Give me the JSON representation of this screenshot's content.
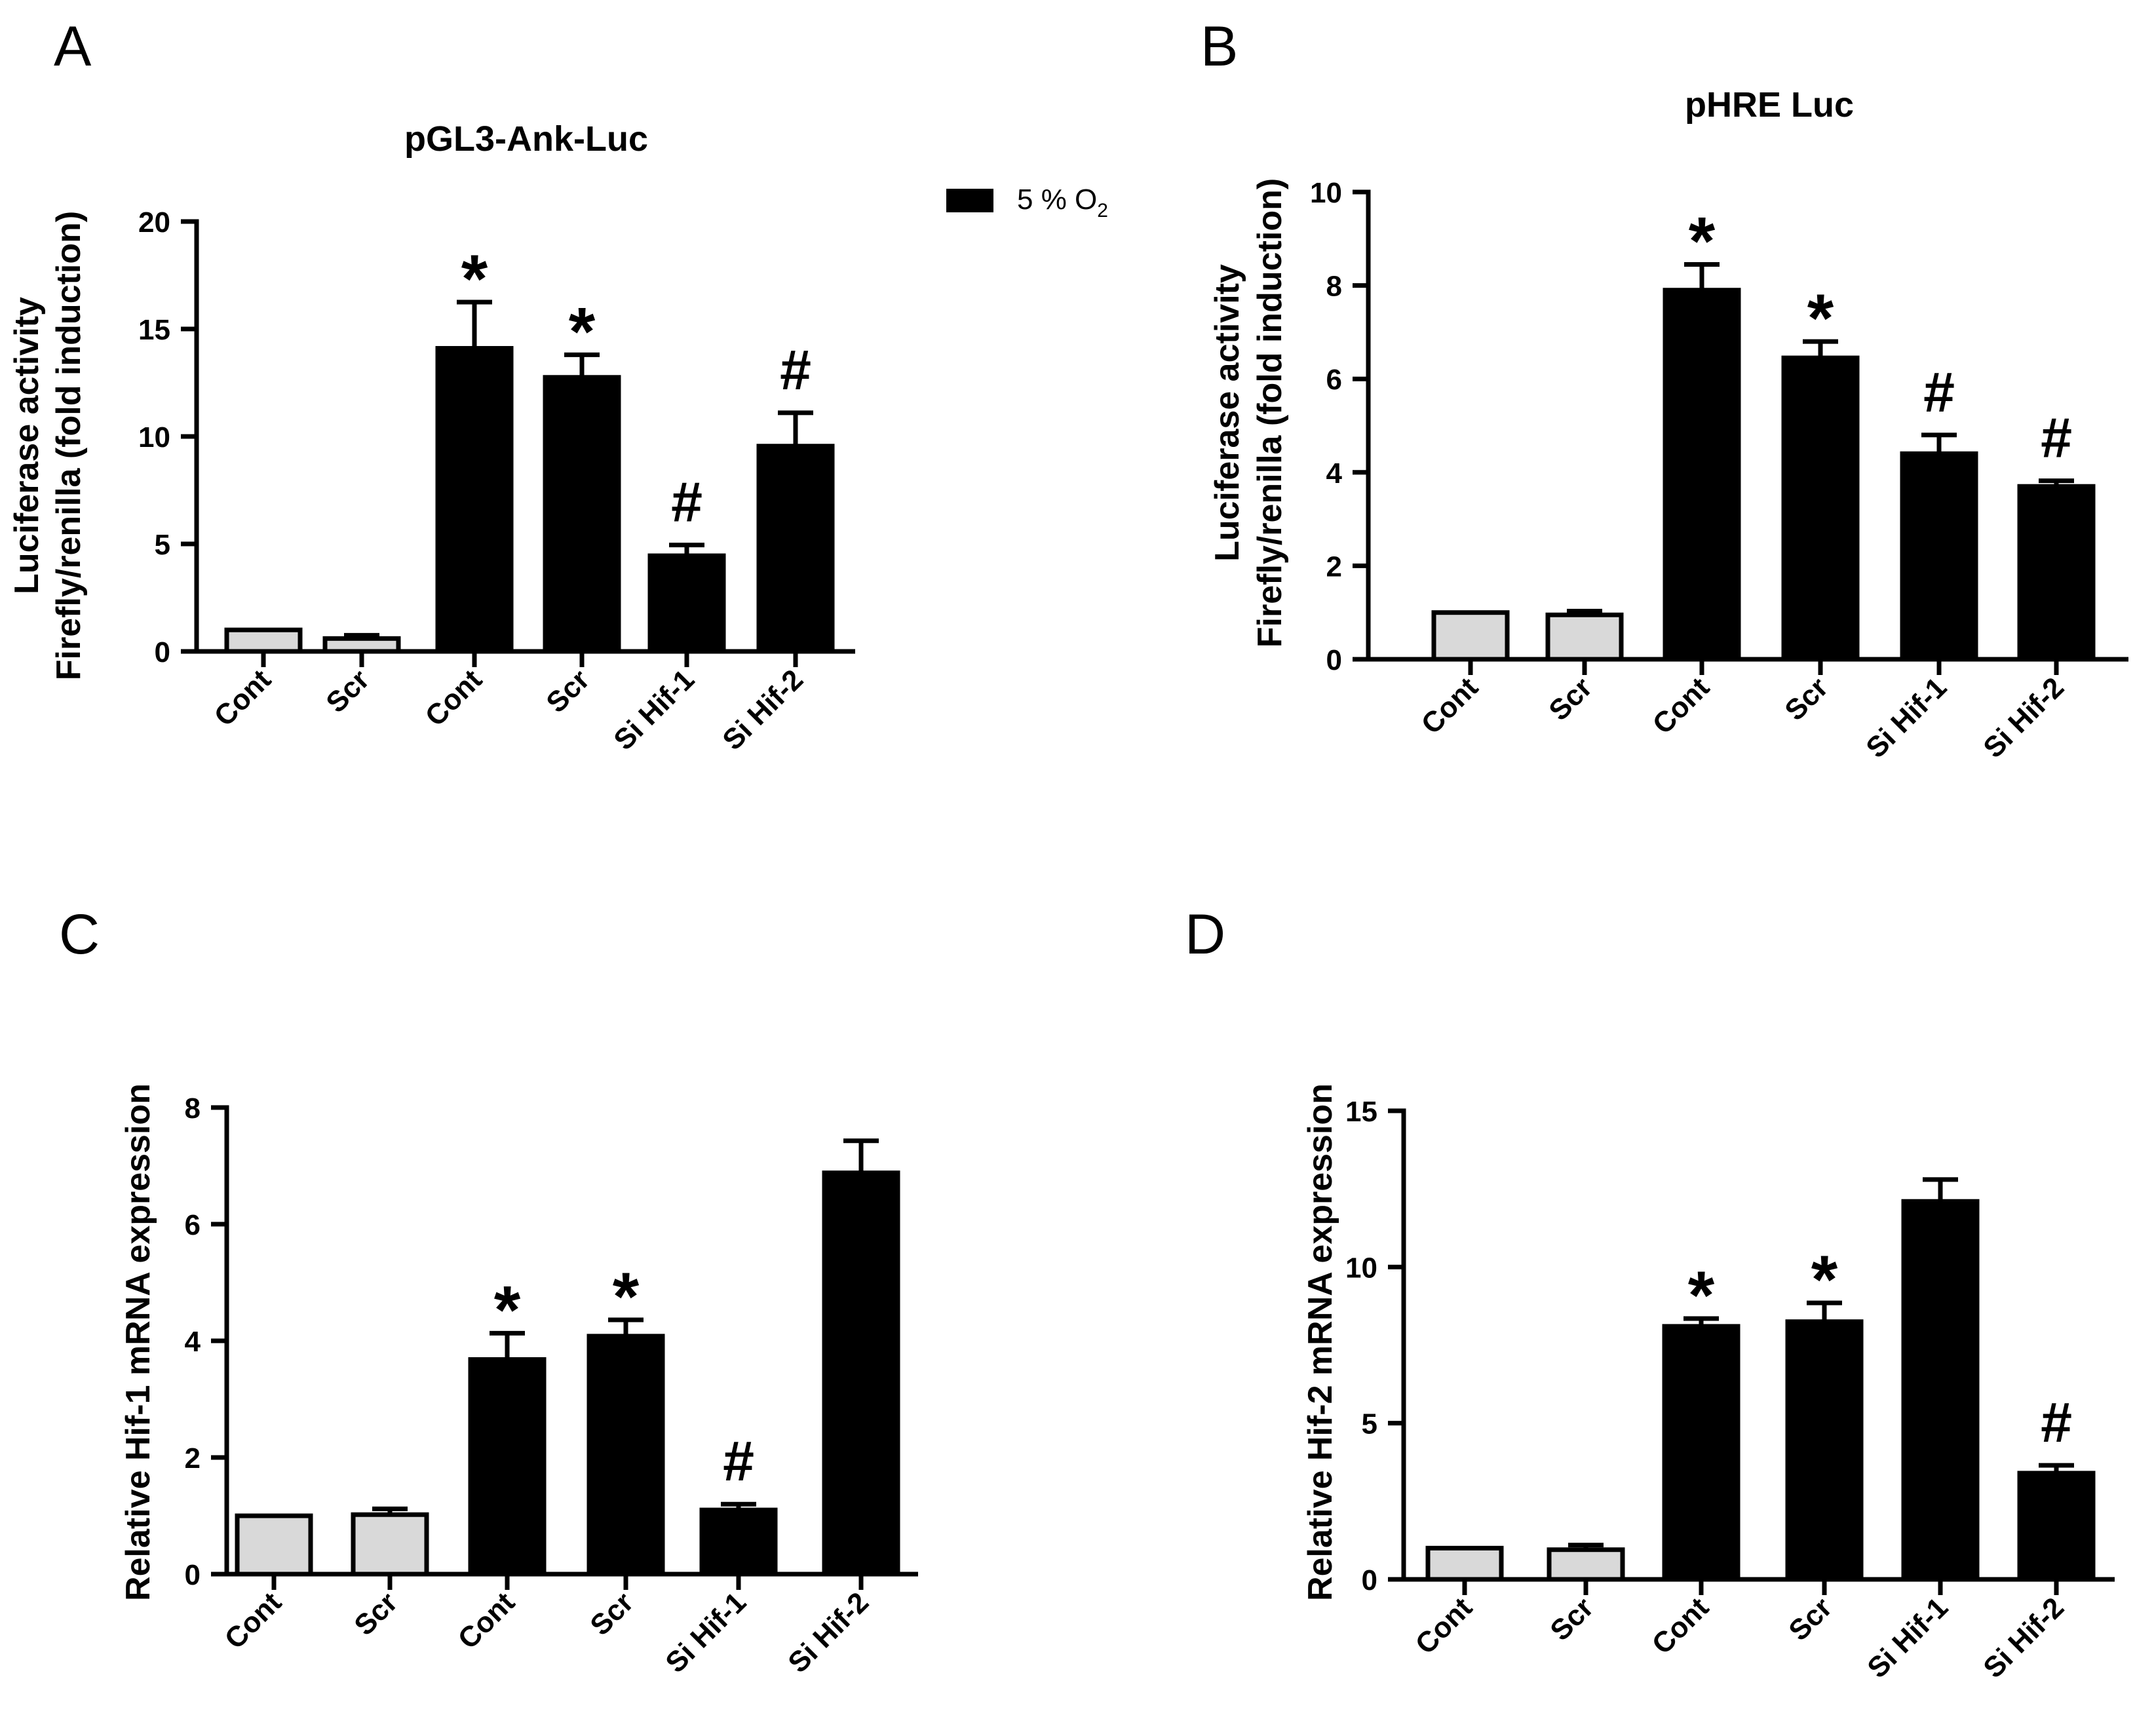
{
  "legend": {
    "label": "5 % O",
    "subscript": "2",
    "color": "#000000"
  },
  "colors": {
    "normoxia": "#d9d9d9",
    "hypoxia": "#000000",
    "outline": "#000000"
  },
  "chart_data": [
    {
      "id": "A",
      "type": "bar",
      "panel_label": "A",
      "title": "pGL3-Ank-Luc",
      "ylabel_lines": [
        "Luciferase activity",
        "Firefly/renilla (fold induction)"
      ],
      "categories": [
        "Cont",
        "Scr",
        "Cont",
        "Scr",
        "Si Hif-1",
        "Si Hif-2"
      ],
      "values": [
        1.0,
        0.6,
        14.1,
        12.75,
        4.45,
        9.55
      ],
      "errors": [
        0.0,
        0.15,
        2.15,
        1.05,
        0.5,
        1.55
      ],
      "groups": [
        "normoxia",
        "normoxia",
        "hypoxia",
        "hypoxia",
        "hypoxia",
        "hypoxia"
      ],
      "annotations": [
        "",
        "",
        "*",
        "*",
        "#",
        "#"
      ],
      "ylim": [
        0,
        20
      ],
      "yticks": [
        0,
        5,
        10,
        15,
        20
      ]
    },
    {
      "id": "B",
      "type": "bar",
      "panel_label": "B",
      "title": "pHRE Luc",
      "ylabel_lines": [
        "Luciferase activity",
        "Firefly/renilla (fold induction)"
      ],
      "categories": [
        "Cont",
        "Scr",
        "Cont",
        "Scr",
        "Si Hif-1",
        "Si Hif-2"
      ],
      "values": [
        1.0,
        0.95,
        7.9,
        6.45,
        4.4,
        3.7
      ],
      "errors": [
        0.0,
        0.08,
        0.55,
        0.35,
        0.4,
        0.12
      ],
      "groups": [
        "normoxia",
        "normoxia",
        "hypoxia",
        "hypoxia",
        "hypoxia",
        "hypoxia"
      ],
      "annotations": [
        "",
        "",
        "*",
        "*",
        "#",
        "#"
      ],
      "ylim": [
        0,
        10
      ],
      "yticks": [
        0,
        2,
        4,
        6,
        8,
        10
      ]
    },
    {
      "id": "C",
      "type": "bar",
      "panel_label": "C",
      "title": "",
      "ylabel_lines": [
        "Relative Hif-1 mRNA expression"
      ],
      "categories": [
        "Cont",
        "Scr",
        "Cont",
        "Scr",
        "Si Hif-1",
        "Si Hif-2"
      ],
      "values": [
        1.0,
        1.02,
        3.68,
        4.08,
        1.1,
        6.88
      ],
      "errors": [
        0.0,
        0.1,
        0.45,
        0.28,
        0.1,
        0.55
      ],
      "groups": [
        "normoxia",
        "normoxia",
        "hypoxia",
        "hypoxia",
        "hypoxia",
        "hypoxia"
      ],
      "annotations": [
        "",
        "",
        "*",
        "*",
        "#",
        ""
      ],
      "ylim": [
        0,
        8
      ],
      "yticks": [
        0,
        2,
        4,
        6,
        8
      ]
    },
    {
      "id": "D",
      "type": "bar",
      "panel_label": "D",
      "title": "",
      "ylabel_lines": [
        "Relative Hif-2 mRNA expression"
      ],
      "categories": [
        "Cont",
        "Scr",
        "Cont",
        "Scr",
        "Si Hif-1",
        "Si Hif-2"
      ],
      "values": [
        1.0,
        0.95,
        8.1,
        8.25,
        12.1,
        3.4
      ],
      "errors": [
        0.0,
        0.15,
        0.25,
        0.6,
        0.7,
        0.25
      ],
      "groups": [
        "normoxia",
        "normoxia",
        "hypoxia",
        "hypoxia",
        "hypoxia",
        "hypoxia"
      ],
      "annotations": [
        "",
        "",
        "*",
        "*",
        "",
        "#"
      ],
      "ylim": [
        0,
        15
      ],
      "yticks": [
        0,
        5,
        10,
        15
      ]
    }
  ]
}
